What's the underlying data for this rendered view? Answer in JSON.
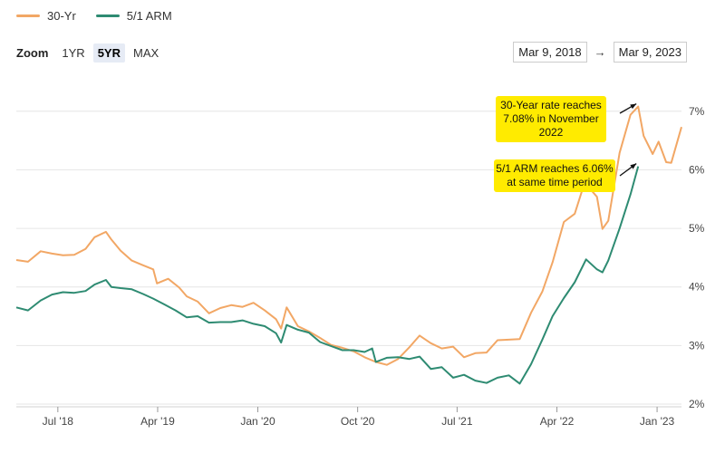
{
  "legend": {
    "items": [
      {
        "label": "30-Yr",
        "color": "#f2a765"
      },
      {
        "label": "5/1 ARM",
        "color": "#2e8b72"
      }
    ]
  },
  "zoom": {
    "label": "Zoom",
    "options": [
      "1YR",
      "5YR",
      "MAX"
    ],
    "active": "5YR"
  },
  "date_range": {
    "start": "Mar 9, 2018",
    "arrow": "→",
    "end": "Mar 9, 2023"
  },
  "chart_data": {
    "type": "line",
    "xlim": [
      "2018-03-09",
      "2023-03-09"
    ],
    "ylim": [
      2,
      7.6
    ],
    "grid": true,
    "y_ticks": [
      2,
      3,
      4,
      5,
      6,
      7
    ],
    "y_tick_labels": [
      "2%",
      "3%",
      "4%",
      "5%",
      "6%",
      "7%"
    ],
    "x_ticks": [
      {
        "date": "2018-07-01",
        "label": "Jul '18"
      },
      {
        "date": "2019-04-01",
        "label": "Apr '19"
      },
      {
        "date": "2020-01-01",
        "label": "Jan '20"
      },
      {
        "date": "2020-10-01",
        "label": "Oct '20"
      },
      {
        "date": "2021-07-01",
        "label": "Jul '21"
      },
      {
        "date": "2022-04-01",
        "label": "Apr '22"
      },
      {
        "date": "2023-01-01",
        "label": "Jan '23"
      }
    ],
    "series": [
      {
        "name": "30-Yr",
        "color": "#f2a765",
        "points": [
          [
            "2018-03-09",
            4.46
          ],
          [
            "2018-04-10",
            4.43
          ],
          [
            "2018-05-15",
            4.61
          ],
          [
            "2018-06-15",
            4.57
          ],
          [
            "2018-07-15",
            4.54
          ],
          [
            "2018-08-15",
            4.55
          ],
          [
            "2018-09-15",
            4.65
          ],
          [
            "2018-10-10",
            4.85
          ],
          [
            "2018-11-10",
            4.94
          ],
          [
            "2018-11-25",
            4.81
          ],
          [
            "2018-12-20",
            4.62
          ],
          [
            "2019-01-20",
            4.45
          ],
          [
            "2019-02-20",
            4.37
          ],
          [
            "2019-03-20",
            4.3
          ],
          [
            "2019-03-30",
            4.06
          ],
          [
            "2019-04-30",
            4.14
          ],
          [
            "2019-05-30",
            3.99
          ],
          [
            "2019-06-20",
            3.84
          ],
          [
            "2019-07-20",
            3.75
          ],
          [
            "2019-08-20",
            3.55
          ],
          [
            "2019-09-20",
            3.64
          ],
          [
            "2019-10-20",
            3.69
          ],
          [
            "2019-11-20",
            3.66
          ],
          [
            "2019-12-20",
            3.73
          ],
          [
            "2020-01-20",
            3.6
          ],
          [
            "2020-02-20",
            3.45
          ],
          [
            "2020-03-05",
            3.29
          ],
          [
            "2020-03-20",
            3.65
          ],
          [
            "2020-04-20",
            3.33
          ],
          [
            "2020-05-20",
            3.24
          ],
          [
            "2020-06-20",
            3.13
          ],
          [
            "2020-07-20",
            3.01
          ],
          [
            "2020-08-20",
            2.96
          ],
          [
            "2020-09-20",
            2.9
          ],
          [
            "2020-10-20",
            2.8
          ],
          [
            "2020-11-20",
            2.72
          ],
          [
            "2020-12-20",
            2.67
          ],
          [
            "2021-01-20",
            2.77
          ],
          [
            "2021-02-20",
            2.97
          ],
          [
            "2021-03-20",
            3.17
          ],
          [
            "2021-04-20",
            3.04
          ],
          [
            "2021-05-20",
            2.95
          ],
          [
            "2021-06-20",
            2.98
          ],
          [
            "2021-07-20",
            2.8
          ],
          [
            "2021-08-20",
            2.87
          ],
          [
            "2021-09-20",
            2.88
          ],
          [
            "2021-10-20",
            3.09
          ],
          [
            "2021-11-20",
            3.1
          ],
          [
            "2021-12-20",
            3.11
          ],
          [
            "2022-01-20",
            3.56
          ],
          [
            "2022-02-20",
            3.92
          ],
          [
            "2022-03-20",
            4.42
          ],
          [
            "2022-04-20",
            5.11
          ],
          [
            "2022-05-20",
            5.25
          ],
          [
            "2022-06-16",
            5.78
          ],
          [
            "2022-07-20",
            5.54
          ],
          [
            "2022-08-04",
            4.99
          ],
          [
            "2022-08-20",
            5.13
          ],
          [
            "2022-09-20",
            6.29
          ],
          [
            "2022-10-20",
            6.94
          ],
          [
            "2022-11-10",
            7.08
          ],
          [
            "2022-11-25",
            6.58
          ],
          [
            "2022-12-20",
            6.27
          ],
          [
            "2023-01-05",
            6.48
          ],
          [
            "2023-01-26",
            6.13
          ],
          [
            "2023-02-09",
            6.12
          ],
          [
            "2023-03-09",
            6.73
          ]
        ]
      },
      {
        "name": "5/1 ARM",
        "color": "#2e8b72",
        "points": [
          [
            "2018-03-09",
            3.65
          ],
          [
            "2018-04-10",
            3.6
          ],
          [
            "2018-05-15",
            3.77
          ],
          [
            "2018-06-15",
            3.87
          ],
          [
            "2018-07-15",
            3.91
          ],
          [
            "2018-08-15",
            3.9
          ],
          [
            "2018-09-15",
            3.93
          ],
          [
            "2018-10-10",
            4.04
          ],
          [
            "2018-11-10",
            4.12
          ],
          [
            "2018-11-25",
            4.0
          ],
          [
            "2018-12-20",
            3.98
          ],
          [
            "2019-01-20",
            3.96
          ],
          [
            "2019-02-20",
            3.88
          ],
          [
            "2019-03-20",
            3.8
          ],
          [
            "2019-04-20",
            3.7
          ],
          [
            "2019-05-20",
            3.6
          ],
          [
            "2019-06-20",
            3.48
          ],
          [
            "2019-07-20",
            3.5
          ],
          [
            "2019-08-20",
            3.39
          ],
          [
            "2019-09-20",
            3.4
          ],
          [
            "2019-10-20",
            3.4
          ],
          [
            "2019-11-20",
            3.43
          ],
          [
            "2019-12-20",
            3.37
          ],
          [
            "2020-01-20",
            3.33
          ],
          [
            "2020-02-20",
            3.21
          ],
          [
            "2020-03-05",
            3.05
          ],
          [
            "2020-03-20",
            3.35
          ],
          [
            "2020-04-20",
            3.27
          ],
          [
            "2020-05-20",
            3.22
          ],
          [
            "2020-06-20",
            3.06
          ],
          [
            "2020-07-20",
            2.99
          ],
          [
            "2020-08-20",
            2.92
          ],
          [
            "2020-09-20",
            2.92
          ],
          [
            "2020-10-20",
            2.89
          ],
          [
            "2020-11-10",
            2.95
          ],
          [
            "2020-11-20",
            2.72
          ],
          [
            "2020-12-20",
            2.79
          ],
          [
            "2021-01-20",
            2.8
          ],
          [
            "2021-02-20",
            2.77
          ],
          [
            "2021-03-20",
            2.81
          ],
          [
            "2021-04-20",
            2.6
          ],
          [
            "2021-05-20",
            2.63
          ],
          [
            "2021-06-20",
            2.45
          ],
          [
            "2021-07-20",
            2.5
          ],
          [
            "2021-08-20",
            2.4
          ],
          [
            "2021-09-20",
            2.36
          ],
          [
            "2021-10-20",
            2.45
          ],
          [
            "2021-11-20",
            2.49
          ],
          [
            "2021-12-20",
            2.35
          ],
          [
            "2022-01-20",
            2.68
          ],
          [
            "2022-02-20",
            3.1
          ],
          [
            "2022-03-20",
            3.5
          ],
          [
            "2022-04-20",
            3.81
          ],
          [
            "2022-05-20",
            4.08
          ],
          [
            "2022-06-20",
            4.47
          ],
          [
            "2022-07-20",
            4.3
          ],
          [
            "2022-08-04",
            4.25
          ],
          [
            "2022-08-20",
            4.45
          ],
          [
            "2022-09-20",
            5.0
          ],
          [
            "2022-10-20",
            5.58
          ],
          [
            "2022-11-10",
            6.06
          ]
        ]
      }
    ],
    "annotations": [
      {
        "text_lines": [
          "30-Year rate reaches",
          "7.08% in November",
          "2022"
        ],
        "points_to": [
          "2022-11-10",
          7.08
        ],
        "background": "#ffeb00"
      },
      {
        "text_lines": [
          "5/1 ARM reaches 6.06%",
          "at same time period"
        ],
        "points_to": [
          "2022-11-10",
          6.06
        ],
        "background": "#ffeb00"
      }
    ]
  }
}
